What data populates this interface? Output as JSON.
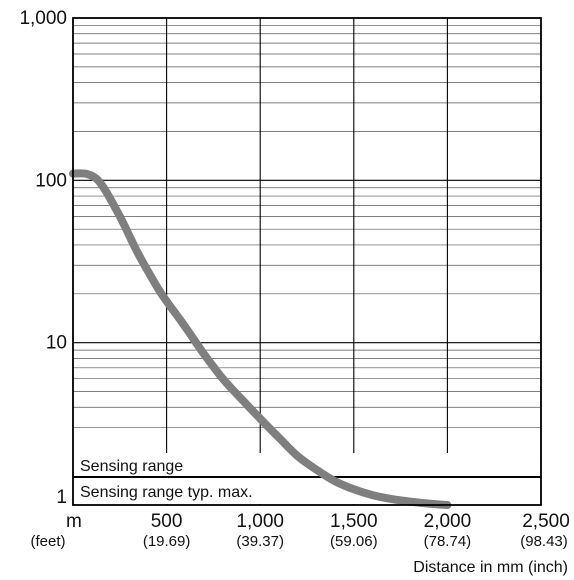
{
  "chart_data": {
    "type": "line",
    "y_scale": "log",
    "ylim": [
      1,
      1000
    ],
    "xlim": [
      0,
      2500
    ],
    "xlabel": "Distance in mm (inch)",
    "ylabel": "",
    "title": "",
    "grid": true,
    "y_ticks": [
      {
        "value": 1,
        "label": "1"
      },
      {
        "value": 10,
        "label": "10"
      },
      {
        "value": 100,
        "label": "100"
      },
      {
        "value": 1000,
        "label": "1,000"
      }
    ],
    "x_ticks": [
      {
        "value": 0,
        "label": "m",
        "sublabel": "(feet)"
      },
      {
        "value": 500,
        "label": "500",
        "sublabel": "(19.69)"
      },
      {
        "value": 1000,
        "label": "1,000",
        "sublabel": "(39.37)"
      },
      {
        "value": 1500,
        "label": "1,500",
        "sublabel": "(59.06)"
      },
      {
        "value": 2000,
        "label": "2,000",
        "sublabel": "(78.74)"
      },
      {
        "value": 2500,
        "label": "2,500",
        "sublabel": "(98.43)"
      }
    ],
    "bands": [
      {
        "label": "Sensing range",
        "value": 1500
      },
      {
        "label": "Sensing range typ. max.",
        "value": 2000
      }
    ],
    "series": [
      {
        "color": "#7f7f7f",
        "x": [
          0,
          80,
          150,
          250,
          350,
          450,
          500,
          600,
          700,
          800,
          900,
          1000,
          1100,
          1200,
          1300,
          1400,
          1500,
          1600,
          1700,
          1800,
          1900,
          2000
        ],
        "y": [
          110,
          109,
          95,
          60,
          35,
          22,
          18,
          12.5,
          8.5,
          6.0,
          4.5,
          3.4,
          2.6,
          2.0,
          1.65,
          1.4,
          1.25,
          1.15,
          1.09,
          1.05,
          1.02,
          1.0
        ]
      }
    ]
  }
}
